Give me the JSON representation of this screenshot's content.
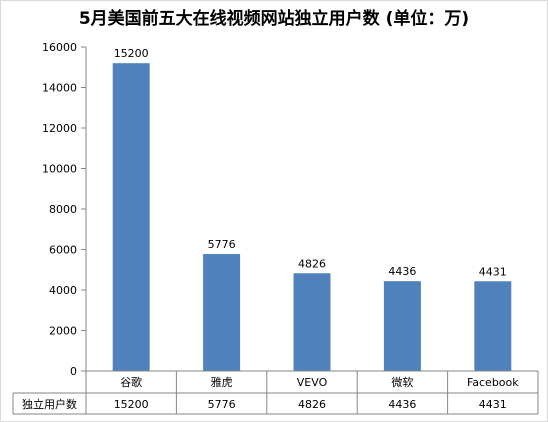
{
  "chart_data": {
    "type": "bar",
    "title": "5月美国前五大在线视频网站独立用户数 (单位：万)",
    "categories": [
      "谷歌",
      "雅虎",
      "VEVO",
      "微软",
      "Facebook"
    ],
    "series": [
      {
        "name": "独立用户数",
        "values": [
          15200,
          5776,
          4826,
          4436,
          4431
        ],
        "color": "#4F81BD"
      }
    ],
    "ylim": [
      0,
      16000
    ],
    "yticks": [
      0,
      2000,
      4000,
      6000,
      8000,
      10000,
      12000,
      14000,
      16000
    ],
    "xlabel": "",
    "ylabel": "",
    "grid": false,
    "data_table": true
  }
}
